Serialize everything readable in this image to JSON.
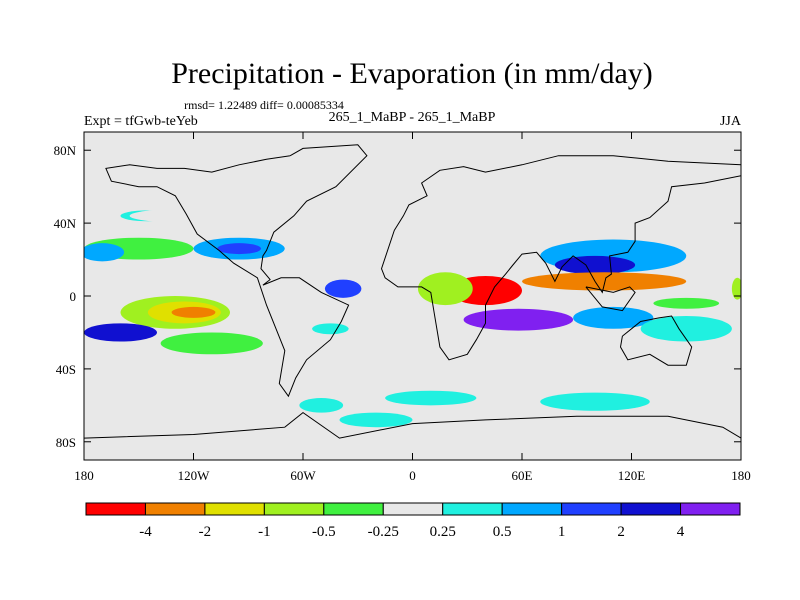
{
  "chart_data": {
    "type": "heatmap",
    "title": "Precipitation - Evaporation (in mm/day)",
    "stats_line": "rmsd= 1.22489 diff= 0.00085334",
    "experiment_label": "Expt = tfGwb-teYeb",
    "case_label": "265_1_MaBP - 265_1_MaBP",
    "season": "JJA",
    "x_axis": {
      "range": [
        -180,
        180
      ],
      "ticks": [
        -180,
        -120,
        -60,
        0,
        60,
        120,
        180
      ],
      "tick_labels": [
        "180",
        "120W",
        "60W",
        "0",
        "60E",
        "120E",
        "180"
      ]
    },
    "y_axis": {
      "range": [
        -90,
        90
      ],
      "ticks": [
        -80,
        -40,
        0,
        40,
        80
      ],
      "tick_labels": [
        "80S",
        "40S",
        "0",
        "40N",
        "80N"
      ]
    },
    "colorbar": {
      "labels": [
        "-4",
        "-2",
        "-1",
        "-0.5",
        "-0.25",
        "0.25",
        "0.5",
        "1",
        "2",
        "4"
      ],
      "colors": [
        "#ff0000",
        "#f08000",
        "#e0e000",
        "#a0f020",
        "#40f040",
        "#e8e8e8",
        "#20f0e0",
        "#00a8ff",
        "#2040ff",
        "#1010d0",
        "#8020f0"
      ]
    },
    "background_color": "#e8e8e8",
    "regions": [
      {
        "level": 5,
        "lon": -100,
        "lat": 76,
        "rx": 40,
        "ry": 5
      },
      {
        "level": 6,
        "lon": -145,
        "lat": 44,
        "rx": 15,
        "ry": 3
      },
      {
        "level": 5,
        "lon": -120,
        "lat": 44,
        "rx": 35,
        "ry": 4
      },
      {
        "level": 4,
        "lon": -150,
        "lat": 26,
        "rx": 30,
        "ry": 6
      },
      {
        "level": 7,
        "lon": -170,
        "lat": 24,
        "rx": 12,
        "ry": 5
      },
      {
        "level": 7,
        "lon": -95,
        "lat": 26,
        "rx": 25,
        "ry": 6
      },
      {
        "level": 8,
        "lon": -95,
        "lat": 26,
        "rx": 12,
        "ry": 3
      },
      {
        "level": 5,
        "lon": -50,
        "lat": 30,
        "rx": 10,
        "ry": 4
      },
      {
        "level": 3,
        "lon": -130,
        "lat": -9,
        "rx": 30,
        "ry": 9
      },
      {
        "level": 2,
        "lon": -125,
        "lat": -9,
        "rx": 20,
        "ry": 6
      },
      {
        "level": 1,
        "lon": -120,
        "lat": -9,
        "rx": 12,
        "ry": 3
      },
      {
        "level": 9,
        "lon": -160,
        "lat": -20,
        "rx": 20,
        "ry": 5
      },
      {
        "level": 4,
        "lon": -110,
        "lat": -26,
        "rx": 28,
        "ry": 6
      },
      {
        "level": 5,
        "lon": -155,
        "lat": -35,
        "rx": 25,
        "ry": 4
      },
      {
        "level": 5,
        "lon": -95,
        "lat": -44,
        "rx": 35,
        "ry": 5
      },
      {
        "level": 6,
        "lon": -45,
        "lat": -18,
        "rx": 10,
        "ry": 3
      },
      {
        "level": 8,
        "lon": -38,
        "lat": 4,
        "rx": 10,
        "ry": 5
      },
      {
        "level": 5,
        "lon": -30,
        "lat": -36,
        "rx": 15,
        "ry": 4
      },
      {
        "level": 6,
        "lon": -50,
        "lat": -60,
        "rx": 12,
        "ry": 4
      },
      {
        "level": 6,
        "lon": 10,
        "lat": -56,
        "rx": 25,
        "ry": 4
      },
      {
        "level": 6,
        "lon": 100,
        "lat": -58,
        "rx": 30,
        "ry": 5
      },
      {
        "level": 6,
        "lon": -20,
        "lat": -68,
        "rx": 20,
        "ry": 4
      },
      {
        "level": 5,
        "lon": 60,
        "lat": 56,
        "rx": 14,
        "ry": 3
      },
      {
        "level": 5,
        "lon": 90,
        "lat": 32,
        "rx": 25,
        "ry": 5
      },
      {
        "level": 7,
        "lon": 110,
        "lat": 22,
        "rx": 40,
        "ry": 9
      },
      {
        "level": 9,
        "lon": 100,
        "lat": 17,
        "rx": 22,
        "ry": 5
      },
      {
        "level": 1,
        "lon": 105,
        "lat": 8,
        "rx": 45,
        "ry": 5
      },
      {
        "level": 0,
        "lon": 40,
        "lat": 3,
        "rx": 20,
        "ry": 8
      },
      {
        "level": 3,
        "lon": 18,
        "lat": 4,
        "rx": 15,
        "ry": 9
      },
      {
        "level": 5,
        "lon": 45,
        "lat": -26,
        "rx": 20,
        "ry": 7
      },
      {
        "level": 10,
        "lon": 58,
        "lat": -13,
        "rx": 30,
        "ry": 6
      },
      {
        "level": 7,
        "lon": 110,
        "lat": -12,
        "rx": 22,
        "ry": 6
      },
      {
        "level": 6,
        "lon": 150,
        "lat": -18,
        "rx": 25,
        "ry": 7
      },
      {
        "level": 4,
        "lon": 150,
        "lat": -4,
        "rx": 18,
        "ry": 3
      },
      {
        "level": 3,
        "lon": 178,
        "lat": 4,
        "rx": 3,
        "ry": 6
      }
    ],
    "coastline_paths": [
      {
        "name": "americas",
        "points": [
          [
            -67,
            77
          ],
          [
            -60,
            81
          ],
          [
            -30,
            83
          ],
          [
            -25,
            77
          ],
          [
            -42,
            60
          ],
          [
            -58,
            52
          ],
          [
            -65,
            44
          ],
          [
            -76,
            35
          ],
          [
            -80,
            25
          ],
          [
            -82,
            22
          ],
          [
            -83,
            15
          ],
          [
            -78,
            9
          ],
          [
            -82,
            6
          ],
          [
            -72,
            10
          ],
          [
            -62,
            10
          ],
          [
            -50,
            2
          ],
          [
            -35,
            -5
          ],
          [
            -39,
            -14
          ],
          [
            -45,
            -24
          ],
          [
            -58,
            -35
          ],
          [
            -64,
            -45
          ],
          [
            -68,
            -55
          ],
          [
            -73,
            -48
          ],
          [
            -70,
            -30
          ],
          [
            -80,
            -5
          ],
          [
            -85,
            10
          ],
          [
            -98,
            18
          ],
          [
            -106,
            25
          ],
          [
            -118,
            34
          ],
          [
            -124,
            45
          ],
          [
            -130,
            55
          ],
          [
            -140,
            60
          ],
          [
            -150,
            60
          ],
          [
            -165,
            63
          ],
          [
            -168,
            70
          ],
          [
            -155,
            72
          ],
          [
            -140,
            70
          ],
          [
            -125,
            70
          ],
          [
            -110,
            68
          ],
          [
            -95,
            72
          ],
          [
            -80,
            75
          ],
          [
            -67,
            77
          ]
        ]
      },
      {
        "name": "eurasia-africa",
        "points": [
          [
            -10,
            36
          ],
          [
            -17,
            15
          ],
          [
            -15,
            10
          ],
          [
            -8,
            5
          ],
          [
            5,
            5
          ],
          [
            10,
            2
          ],
          [
            12,
            -10
          ],
          [
            15,
            -28
          ],
          [
            20,
            -35
          ],
          [
            30,
            -32
          ],
          [
            35,
            -24
          ],
          [
            40,
            -15
          ],
          [
            40,
            -5
          ],
          [
            45,
            5
          ],
          [
            51,
            12
          ],
          [
            55,
            17
          ],
          [
            60,
            23
          ],
          [
            68,
            24
          ],
          [
            73,
            18
          ],
          [
            78,
            8
          ],
          [
            82,
            16
          ],
          [
            88,
            22
          ],
          [
            95,
            17
          ],
          [
            100,
            8
          ],
          [
            104,
            2
          ],
          [
            106,
            10
          ],
          [
            109,
            12
          ],
          [
            108,
            22
          ],
          [
            118,
            24
          ],
          [
            122,
            30
          ],
          [
            122,
            40
          ],
          [
            130,
            43
          ],
          [
            140,
            52
          ],
          [
            142,
            60
          ],
          [
            160,
            62
          ],
          [
            180,
            66
          ],
          [
            180,
            72
          ],
          [
            140,
            74
          ],
          [
            110,
            77
          ],
          [
            80,
            77
          ],
          [
            60,
            72
          ],
          [
            40,
            68
          ],
          [
            28,
            71
          ],
          [
            15,
            69
          ],
          [
            5,
            62
          ],
          [
            8,
            55
          ],
          [
            -2,
            50
          ],
          [
            -5,
            44
          ],
          [
            -10,
            36
          ]
        ]
      },
      {
        "name": "australia",
        "points": [
          [
            115,
            -22
          ],
          [
            125,
            -14
          ],
          [
            135,
            -12
          ],
          [
            142,
            -11
          ],
          [
            146,
            -18
          ],
          [
            153,
            -28
          ],
          [
            150,
            -38
          ],
          [
            140,
            -38
          ],
          [
            130,
            -32
          ],
          [
            118,
            -35
          ],
          [
            114,
            -28
          ],
          [
            115,
            -22
          ]
        ]
      },
      {
        "name": "indonesia",
        "points": [
          [
            95,
            5
          ],
          [
            104,
            -6
          ],
          [
            115,
            -8
          ],
          [
            122,
            2
          ],
          [
            119,
            5
          ],
          [
            110,
            2
          ],
          [
            100,
            4
          ],
          [
            95,
            5
          ]
        ]
      },
      {
        "name": "antarctica",
        "points": [
          [
            -180,
            -78
          ],
          [
            -120,
            -76
          ],
          [
            -70,
            -72
          ],
          [
            -60,
            -64
          ],
          [
            -40,
            -78
          ],
          [
            0,
            -70
          ],
          [
            40,
            -68
          ],
          [
            90,
            -66
          ],
          [
            140,
            -66
          ],
          [
            170,
            -72
          ],
          [
            180,
            -78
          ]
        ]
      }
    ]
  }
}
